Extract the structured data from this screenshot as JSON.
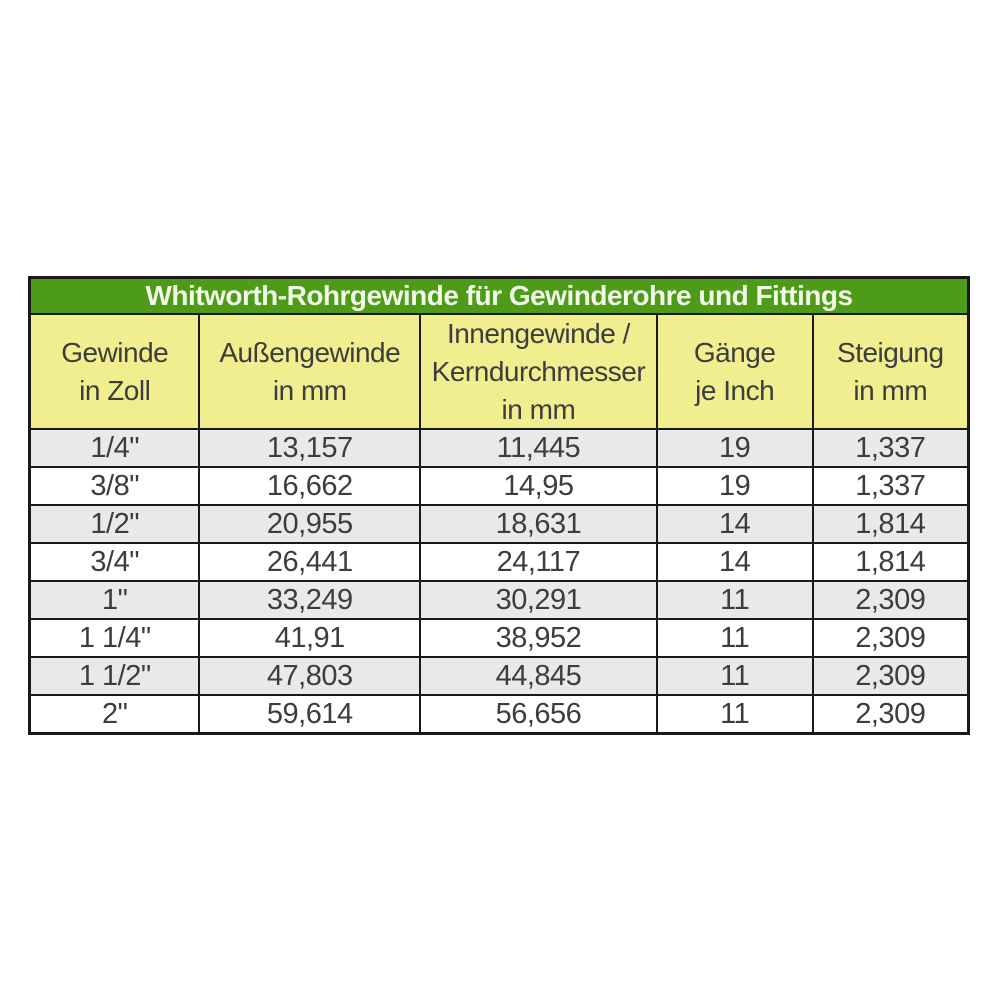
{
  "table": {
    "title": "Whitworth-Rohrgewinde für Gewinderohre und Fittings",
    "columns": [
      "Gewinde\nin Zoll",
      "Außengewinde\nin mm",
      "Innengewinde /\nKerndurchmesser\nin mm",
      "Gänge\nje Inch",
      "Steigung\nin mm"
    ],
    "rows": [
      [
        "1/4\"",
        "13,157",
        "11,445",
        "19",
        "1,337"
      ],
      [
        "3/8\"",
        "16,662",
        "14,95",
        "19",
        "1,337"
      ],
      [
        "1/2\"",
        "20,955",
        "18,631",
        "14",
        "1,814"
      ],
      [
        "3/4\"",
        "26,441",
        "24,117",
        "14",
        "1,814"
      ],
      [
        "1\"",
        "33,249",
        "30,291",
        "11",
        "2,309"
      ],
      [
        "1 1/4\"",
        "41,91",
        "38,952",
        "11",
        "2,309"
      ],
      [
        "1 1/2\"",
        "47,803",
        "44,845",
        "11",
        "2,309"
      ],
      [
        "2\"",
        "59,614",
        "56,656",
        "11",
        "2,309"
      ]
    ]
  },
  "chart_data": {
    "type": "table",
    "title": "Whitworth-Rohrgewinde für Gewinderohre und Fittings",
    "columns": [
      "Gewinde in Zoll",
      "Außengewinde in mm",
      "Innengewinde / Kerndurchmesser in mm",
      "Gänge je Inch",
      "Steigung in mm"
    ],
    "rows": [
      [
        "1/4\"",
        "13,157",
        "11,445",
        "19",
        "1,337"
      ],
      [
        "3/8\"",
        "16,662",
        "14,95",
        "19",
        "1,337"
      ],
      [
        "1/2\"",
        "20,955",
        "18,631",
        "14",
        "1,814"
      ],
      [
        "3/4\"",
        "26,441",
        "24,117",
        "14",
        "1,814"
      ],
      [
        "1\"",
        "33,249",
        "30,291",
        "11",
        "2,309"
      ],
      [
        "1 1/4\"",
        "41,91",
        "38,952",
        "11",
        "2,309"
      ],
      [
        "1 1/2\"",
        "47,803",
        "44,845",
        "11",
        "2,309"
      ],
      [
        "2\"",
        "59,614",
        "56,656",
        "11",
        "2,309"
      ]
    ]
  },
  "colors": {
    "title_bg": "#4e9a19",
    "title_text": "#f1f8e6",
    "header_bg": "#f0ee8e",
    "row_alt_bg": "#e9e9e9",
    "row_bg": "#ffffff",
    "border": "#1a1a1a",
    "text": "#3d3d3d"
  }
}
